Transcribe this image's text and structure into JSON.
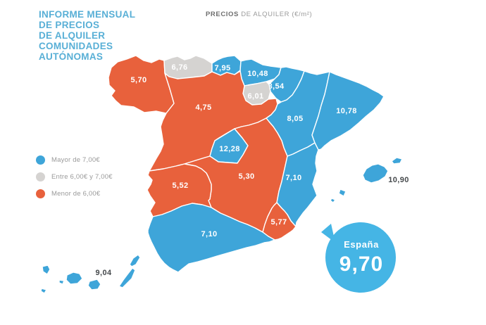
{
  "title": {
    "lines": [
      "INFORME MENSUAL",
      "DE PRECIOS",
      "DE ALQUILER",
      "COMUNIDADES",
      "AUTÓNOMAS"
    ]
  },
  "header": {
    "title_bold": "PRECIOS",
    "title_rest": " DE ALQUILER (€/m²)"
  },
  "legend": {
    "items": [
      {
        "label": "Mayor de 7,00€",
        "category": "mayor"
      },
      {
        "label": "Entre 6,00€ y 7,00€",
        "category": "entre"
      },
      {
        "label": "Menor de 6,00€",
        "category": "menor"
      }
    ]
  },
  "colors": {
    "mayor": "#3EA5D9",
    "entre": "#D5D3D1",
    "menor": "#E8613C",
    "bubble": "#45B5E5",
    "title": "#58AFD6",
    "region_label": "#FFFFFF",
    "island_label": "#464A4D"
  },
  "map": {
    "regions": [
      {
        "id": "galicia",
        "value": "5,70",
        "category": "menor"
      },
      {
        "id": "asturias",
        "value": "6,76",
        "category": "entre"
      },
      {
        "id": "cantabria",
        "value": "7,95",
        "category": "mayor"
      },
      {
        "id": "pais-vasco",
        "value": "10,48",
        "category": "mayor"
      },
      {
        "id": "navarra",
        "value": "8,54",
        "category": "mayor"
      },
      {
        "id": "la-rioja",
        "value": "6,01",
        "category": "entre"
      },
      {
        "id": "castilla-y-leon",
        "value": "4,75",
        "category": "menor"
      },
      {
        "id": "aragon",
        "value": "8,05",
        "category": "mayor"
      },
      {
        "id": "cataluna",
        "value": "10,78",
        "category": "mayor"
      },
      {
        "id": "madrid",
        "value": "12,28",
        "category": "mayor"
      },
      {
        "id": "castilla-la-mancha",
        "value": "5,30",
        "category": "menor"
      },
      {
        "id": "extremadura",
        "value": "5,52",
        "category": "menor"
      },
      {
        "id": "valencia",
        "value": "7,10",
        "category": "mayor"
      },
      {
        "id": "murcia",
        "value": "5,77",
        "category": "menor"
      },
      {
        "id": "andalucia",
        "value": "7,10",
        "category": "mayor"
      },
      {
        "id": "baleares",
        "value": "10,90",
        "category": "mayor"
      },
      {
        "id": "canarias",
        "value": "9,04",
        "category": "mayor"
      }
    ]
  },
  "national": {
    "label": "España",
    "value": "9,70"
  },
  "chart_data": {
    "type": "heatmap",
    "subtype": "choropleth-map-spain",
    "title": "PRECIOS DE ALQUILER (€/m²)",
    "unit": "€/m²",
    "categories": [
      "galicia",
      "asturias",
      "cantabria",
      "pais-vasco",
      "navarra",
      "la-rioja",
      "castilla-y-leon",
      "aragon",
      "cataluna",
      "madrid",
      "castilla-la-mancha",
      "extremadura",
      "valencia",
      "murcia",
      "andalucia",
      "baleares",
      "canarias"
    ],
    "values": [
      5.7,
      6.76,
      7.95,
      10.48,
      8.54,
      6.01,
      4.75,
      8.05,
      10.78,
      12.28,
      5.3,
      5.52,
      7.1,
      5.77,
      7.1,
      10.9,
      9.04
    ],
    "legend_entries": [
      "Mayor de 7,00€",
      "Entre 6,00€ y 7,00€",
      "Menor de 6,00€"
    ],
    "legend_position": "left",
    "national_average": 9.7
  }
}
